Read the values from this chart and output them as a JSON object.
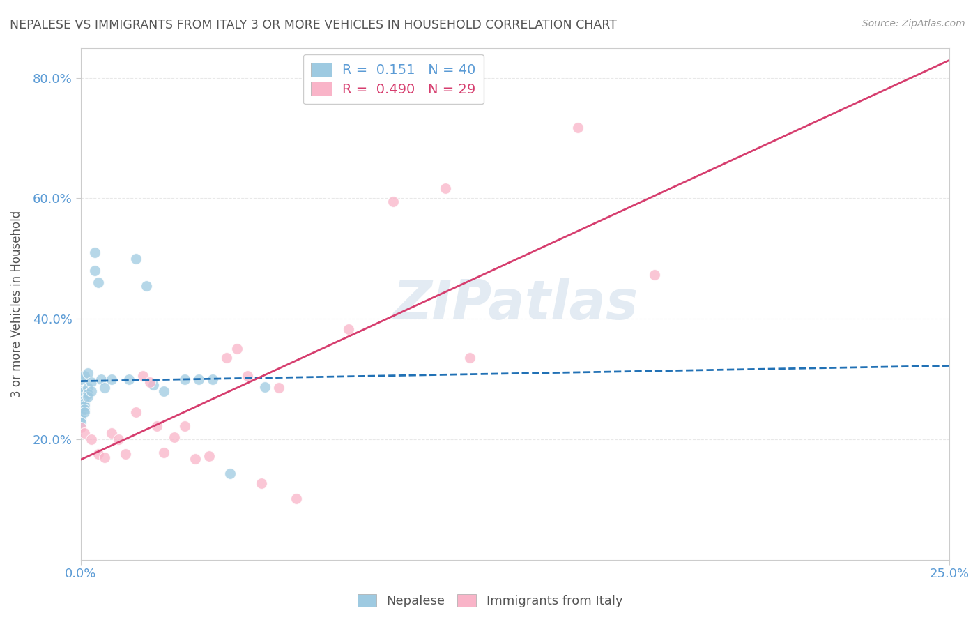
{
  "title": "NEPALESE VS IMMIGRANTS FROM ITALY 3 OR MORE VEHICLES IN HOUSEHOLD CORRELATION CHART",
  "source": "Source: ZipAtlas.com",
  "ylabel": "3 or more Vehicles in Household",
  "xmin": 0.0,
  "xmax": 0.25,
  "ymin": 0.0,
  "ymax": 0.85,
  "yticks": [
    0.2,
    0.4,
    0.6,
    0.8
  ],
  "ytick_labels": [
    "20.0%",
    "40.0%",
    "60.0%",
    "80.0%"
  ],
  "xtick_labels": [
    "0.0%",
    "25.0%"
  ],
  "legend_entries": [
    {
      "label": "R =  0.151   N = 40",
      "color": "#6baed6"
    },
    {
      "label": "R =  0.490   N = 29",
      "color": "#f48fb1"
    }
  ],
  "nepalese_points": [
    [
      0.0,
      0.3
    ],
    [
      0.0,
      0.28
    ],
    [
      0.0,
      0.265
    ],
    [
      0.0,
      0.26
    ],
    [
      0.0,
      0.255
    ],
    [
      0.0,
      0.25
    ],
    [
      0.0,
      0.245
    ],
    [
      0.0,
      0.24
    ],
    [
      0.0,
      0.235
    ],
    [
      0.0,
      0.228
    ],
    [
      0.001,
      0.305
    ],
    [
      0.001,
      0.28
    ],
    [
      0.001,
      0.27
    ],
    [
      0.001,
      0.265
    ],
    [
      0.001,
      0.26
    ],
    [
      0.001,
      0.255
    ],
    [
      0.001,
      0.25
    ],
    [
      0.001,
      0.245
    ],
    [
      0.002,
      0.31
    ],
    [
      0.002,
      0.285
    ],
    [
      0.002,
      0.275
    ],
    [
      0.002,
      0.27
    ],
    [
      0.003,
      0.295
    ],
    [
      0.003,
      0.28
    ],
    [
      0.004,
      0.51
    ],
    [
      0.004,
      0.48
    ],
    [
      0.005,
      0.46
    ],
    [
      0.006,
      0.3
    ],
    [
      0.007,
      0.285
    ],
    [
      0.009,
      0.3
    ],
    [
      0.014,
      0.3
    ],
    [
      0.016,
      0.5
    ],
    [
      0.019,
      0.455
    ],
    [
      0.021,
      0.29
    ],
    [
      0.024,
      0.28
    ],
    [
      0.03,
      0.3
    ],
    [
      0.034,
      0.3
    ],
    [
      0.038,
      0.3
    ],
    [
      0.043,
      0.143
    ],
    [
      0.053,
      0.287
    ]
  ],
  "italy_points": [
    [
      0.0,
      0.22
    ],
    [
      0.001,
      0.21
    ],
    [
      0.003,
      0.2
    ],
    [
      0.005,
      0.175
    ],
    [
      0.007,
      0.17
    ],
    [
      0.009,
      0.21
    ],
    [
      0.011,
      0.2
    ],
    [
      0.013,
      0.175
    ],
    [
      0.016,
      0.245
    ],
    [
      0.018,
      0.305
    ],
    [
      0.02,
      0.295
    ],
    [
      0.022,
      0.222
    ],
    [
      0.024,
      0.178
    ],
    [
      0.027,
      0.203
    ],
    [
      0.03,
      0.222
    ],
    [
      0.033,
      0.168
    ],
    [
      0.037,
      0.172
    ],
    [
      0.042,
      0.335
    ],
    [
      0.045,
      0.35
    ],
    [
      0.048,
      0.305
    ],
    [
      0.052,
      0.127
    ],
    [
      0.057,
      0.285
    ],
    [
      0.062,
      0.102
    ],
    [
      0.077,
      0.383
    ],
    [
      0.09,
      0.595
    ],
    [
      0.105,
      0.617
    ],
    [
      0.112,
      0.335
    ],
    [
      0.143,
      0.718
    ],
    [
      0.165,
      0.473
    ]
  ],
  "nepalese_color": "#9ecae1",
  "italy_color": "#f9b4c8",
  "nepalese_line_color": "#2171b5",
  "italy_line_color": "#d63d6e",
  "watermark": "ZIPatlas",
  "background_color": "#ffffff",
  "grid_color": "#e8e8e8",
  "axis_color": "#cccccc",
  "title_color": "#555555",
  "label_color": "#5b9bd5"
}
